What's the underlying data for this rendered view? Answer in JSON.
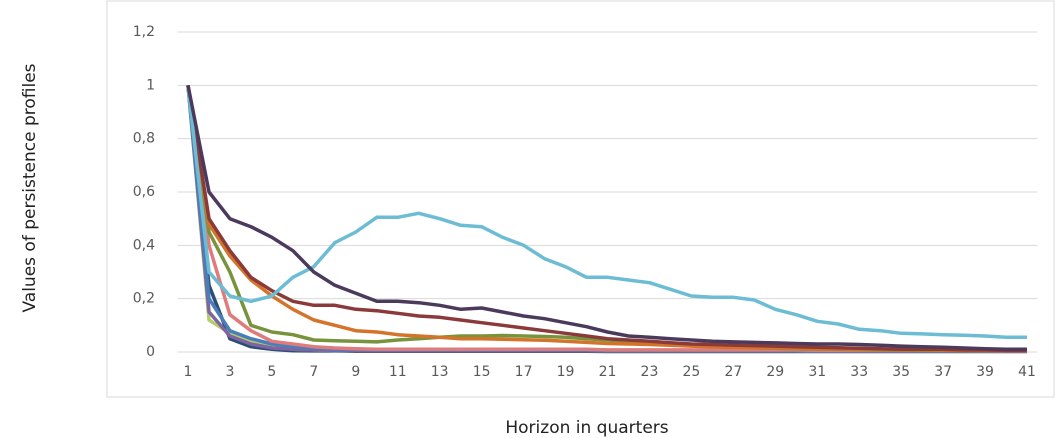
{
  "chart_data": {
    "type": "line",
    "y_label": "Values of persistence profiles",
    "x_label": "Horizon in quarters",
    "categories": [
      1,
      null,
      3,
      null,
      5,
      null,
      7,
      null,
      9,
      null,
      11,
      null,
      13,
      null,
      15,
      null,
      17,
      null,
      19,
      null,
      21,
      null,
      23,
      null,
      25,
      null,
      27,
      null,
      29,
      null,
      31,
      null,
      33,
      null,
      35,
      null,
      37,
      null,
      39,
      null,
      41
    ],
    "ylim": [
      0,
      1.2
    ],
    "yticks": [
      0,
      {
        "value": 0.2,
        "label": "0,2"
      },
      {
        "value": 0.4,
        "label": "0,4"
      },
      {
        "value": 0.6,
        "label": "0,6"
      },
      {
        "value": 0.8,
        "label": "0,8"
      },
      1,
      {
        "value": 1.2,
        "label": "1,2"
      }
    ],
    "grid": true,
    "series": [
      {
        "color": "#4b3a5c",
        "values": [
          1,
          0.6,
          0.5,
          0.47,
          0.43,
          0.38,
          0.3,
          0.25,
          0.22,
          0.19,
          0.19,
          0.185,
          0.175,
          0.16,
          0.165,
          0.15,
          0.135,
          0.125,
          0.11,
          0.095,
          0.075,
          0.06,
          0.055,
          0.05,
          0.045,
          0.04,
          0.038,
          0.036,
          0.034,
          0.032,
          0.03,
          0.03,
          0.028,
          0.025,
          0.022,
          0.02,
          0.018,
          0.015,
          0.012,
          0.01,
          0.01
        ]
      },
      {
        "color": "#6cbcd4",
        "values": [
          1,
          0.3,
          0.21,
          0.19,
          0.21,
          0.28,
          0.32,
          0.41,
          0.45,
          0.505,
          0.505,
          0.52,
          0.5,
          0.475,
          0.47,
          0.43,
          0.4,
          0.35,
          0.32,
          0.28,
          0.28,
          0.27,
          0.26,
          0.235,
          0.21,
          0.205,
          0.205,
          0.195,
          0.16,
          0.14,
          0.115,
          0.105,
          0.085,
          0.08,
          0.07,
          0.068,
          0.065,
          0.063,
          0.06,
          0.055,
          0.055
        ]
      },
      {
        "color": "#8b3a3a",
        "values": [
          1,
          0.5,
          0.38,
          0.28,
          0.23,
          0.19,
          0.175,
          0.175,
          0.16,
          0.155,
          0.145,
          0.135,
          0.13,
          0.12,
          0.11,
          0.1,
          0.09,
          0.08,
          0.07,
          0.06,
          0.05,
          0.045,
          0.04,
          0.035,
          0.03,
          0.028,
          0.026,
          0.024,
          0.022,
          0.02,
          0.018,
          0.016,
          0.014,
          0.012,
          0.01,
          0.01,
          0.01,
          0.008,
          0.008,
          0.006,
          0.006
        ]
      },
      {
        "color": "#d4732a",
        "values": [
          1,
          0.48,
          0.36,
          0.27,
          0.21,
          0.16,
          0.12,
          0.1,
          0.08,
          0.075,
          0.065,
          0.06,
          0.055,
          0.05,
          0.05,
          0.048,
          0.046,
          0.044,
          0.04,
          0.036,
          0.032,
          0.03,
          0.028,
          0.025,
          0.022,
          0.02,
          0.018,
          0.016,
          0.015,
          0.014,
          0.013,
          0.012,
          0.011,
          0.01,
          0.009,
          0.008,
          0.007,
          0.006,
          0.006,
          0.005,
          0.005
        ]
      },
      {
        "color": "#77933c",
        "values": [
          1,
          0.45,
          0.3,
          0.1,
          0.075,
          0.065,
          0.045,
          0.042,
          0.04,
          0.038,
          0.045,
          0.05,
          0.055,
          0.06,
          0.06,
          0.062,
          0.06,
          0.058,
          0.055,
          0.05,
          0.045,
          0.04,
          0.035,
          0.03,
          0.025,
          0.02,
          0.018,
          0.016,
          0.014,
          0.012,
          0.011,
          0.01,
          0.009,
          0.008,
          0.007,
          0.006,
          0.006,
          0.005,
          0.005,
          0.005,
          0.005
        ]
      },
      {
        "color": "#e07b7b",
        "values": [
          1,
          0.4,
          0.14,
          0.08,
          0.04,
          0.03,
          0.02,
          0.015,
          0.012,
          0.01,
          0.01,
          0.01,
          0.01,
          0.01,
          0.01,
          0.01,
          0.01,
          0.01,
          0.01,
          0.01,
          0.008,
          0.008,
          0.008,
          0.008,
          0.008,
          0.008,
          0.008,
          0.008,
          0.008,
          0.008,
          0.006,
          0.006,
          0.006,
          0.006,
          0.006,
          0.006,
          0.006,
          0.006,
          0.006,
          0.006,
          0.006
        ]
      },
      {
        "color": "#4a7ebb",
        "values": [
          1,
          0.2,
          0.08,
          0.05,
          0.03,
          0.02,
          0.015,
          0.01,
          0.01,
          0.008,
          0.008,
          0.008,
          0.008,
          0.008,
          0.008,
          0.008,
          0.008,
          0.008,
          0.008,
          0.008,
          0.006,
          0.006,
          0.006,
          0.006,
          0.006,
          0.006,
          0.006,
          0.006,
          0.006,
          0.006,
          0.005,
          0.005,
          0.005,
          0.005,
          0.005,
          0.005,
          0.005,
          0.005,
          0.005,
          0.005,
          0.005
        ]
      },
      {
        "color": "#8064a2",
        "values": [
          1,
          0.15,
          0.06,
          0.03,
          0.015,
          0.01,
          0.008,
          0.006,
          0.005,
          0.005,
          0.005,
          0.005,
          0.005,
          0.005,
          0.005,
          0.005,
          0.005,
          0.005,
          0.005,
          0.005,
          0.004,
          0.004,
          0.004,
          0.004,
          0.004,
          0.004,
          0.004,
          0.004,
          0.004,
          0.004,
          0.003,
          0.003,
          0.003,
          0.003,
          0.003,
          0.003,
          0.003,
          0.003,
          0.003,
          0.003,
          0.003
        ]
      },
      {
        "color": "#b3cf6b",
        "values": [
          1,
          0.12,
          0.07,
          0.04,
          0.02,
          0.01,
          0.008,
          0.006,
          0.005,
          0.005,
          0.005,
          0.005,
          0.005,
          0.005,
          0.005,
          0.005,
          0.005,
          0.005,
          0.005,
          0.005,
          0.004,
          0.004,
          0.004,
          0.004,
          0.004,
          0.004,
          0.004,
          0.004,
          0.004,
          0.004,
          0.003,
          0.003,
          0.003,
          0.003,
          0.003,
          0.003,
          0.003,
          0.003,
          0.003,
          0.003,
          0.003
        ]
      },
      {
        "color": "#2c4d75",
        "values": [
          1,
          0.25,
          0.05,
          0.02,
          0.01,
          0.005,
          0.004,
          0.004,
          0.003,
          0.003,
          0.003,
          0.003,
          0.003,
          0.003,
          0.003,
          0.003,
          0.003,
          0.003,
          0.003,
          0.003,
          0.002,
          0.002,
          0.002,
          0.002,
          0.002,
          0.002,
          0.002,
          0.002,
          0.002,
          0.002,
          0.002,
          0.002,
          0.002,
          0.002,
          0.002,
          0.002,
          0.002,
          0.002,
          0.002,
          0.002,
          0.002
        ]
      }
    ]
  }
}
